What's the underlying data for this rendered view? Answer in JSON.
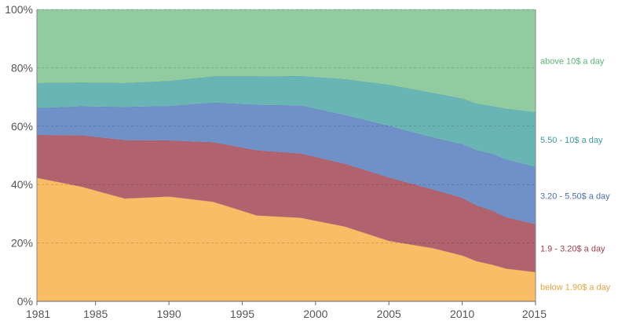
{
  "chart_data": {
    "type": "area",
    "stacked": true,
    "percent": true,
    "x": [
      1981,
      1984,
      1987,
      1990,
      1993,
      1996,
      1999,
      2002,
      2005,
      2008,
      2010,
      2011,
      2012,
      2013,
      2015
    ],
    "series": [
      {
        "name": "below 1.90$ a day",
        "color": "#f9bd66",
        "values": [
          42.3,
          39.3,
          35.2,
          35.9,
          34.1,
          29.4,
          28.6,
          25.6,
          20.7,
          18.2,
          15.7,
          13.7,
          12.6,
          11.2,
          10.0
        ]
      },
      {
        "name": "1.9 - 3.20$ a day",
        "color": "#b0626e",
        "values": [
          14.7,
          17.6,
          20.0,
          19.2,
          20.4,
          22.3,
          22.0,
          21.5,
          21.7,
          20.1,
          19.7,
          19.1,
          18.5,
          17.6,
          16.4
        ]
      },
      {
        "name": "3.20 - 5.50$ a day",
        "color": "#7090c8",
        "values": [
          9.2,
          9.9,
          11.4,
          11.8,
          13.6,
          15.6,
          16.5,
          16.7,
          17.7,
          17.8,
          18.4,
          18.9,
          19.5,
          19.8,
          19.6
        ]
      },
      {
        "name": "5.50 - 10$ a day",
        "color": "#69b5b6",
        "values": [
          8.6,
          8.2,
          8.2,
          8.6,
          8.9,
          9.7,
          10.1,
          12.3,
          14.1,
          15.3,
          15.7,
          16.0,
          16.3,
          17.4,
          18.8
        ]
      },
      {
        "name": "above 10$ a day",
        "color": "#90cca0",
        "values": [
          25.2,
          25.0,
          25.2,
          24.5,
          23.0,
          23.0,
          22.8,
          23.9,
          25.8,
          28.6,
          30.5,
          32.3,
          33.1,
          34.0,
          35.2
        ]
      }
    ],
    "xlim": [
      1981,
      2015
    ],
    "ylim": [
      0,
      100
    ],
    "x_ticks": [
      "1981",
      "1985",
      "1990",
      "1995",
      "2000",
      "2005",
      "2010",
      "2015"
    ],
    "y_ticks": [
      "0%",
      "20%",
      "40%",
      "60%",
      "80%",
      "100%"
    ],
    "grid": "horizontal dashed",
    "legend": "inline labels at right edge",
    "title": "",
    "xlabel": "",
    "ylabel": ""
  }
}
